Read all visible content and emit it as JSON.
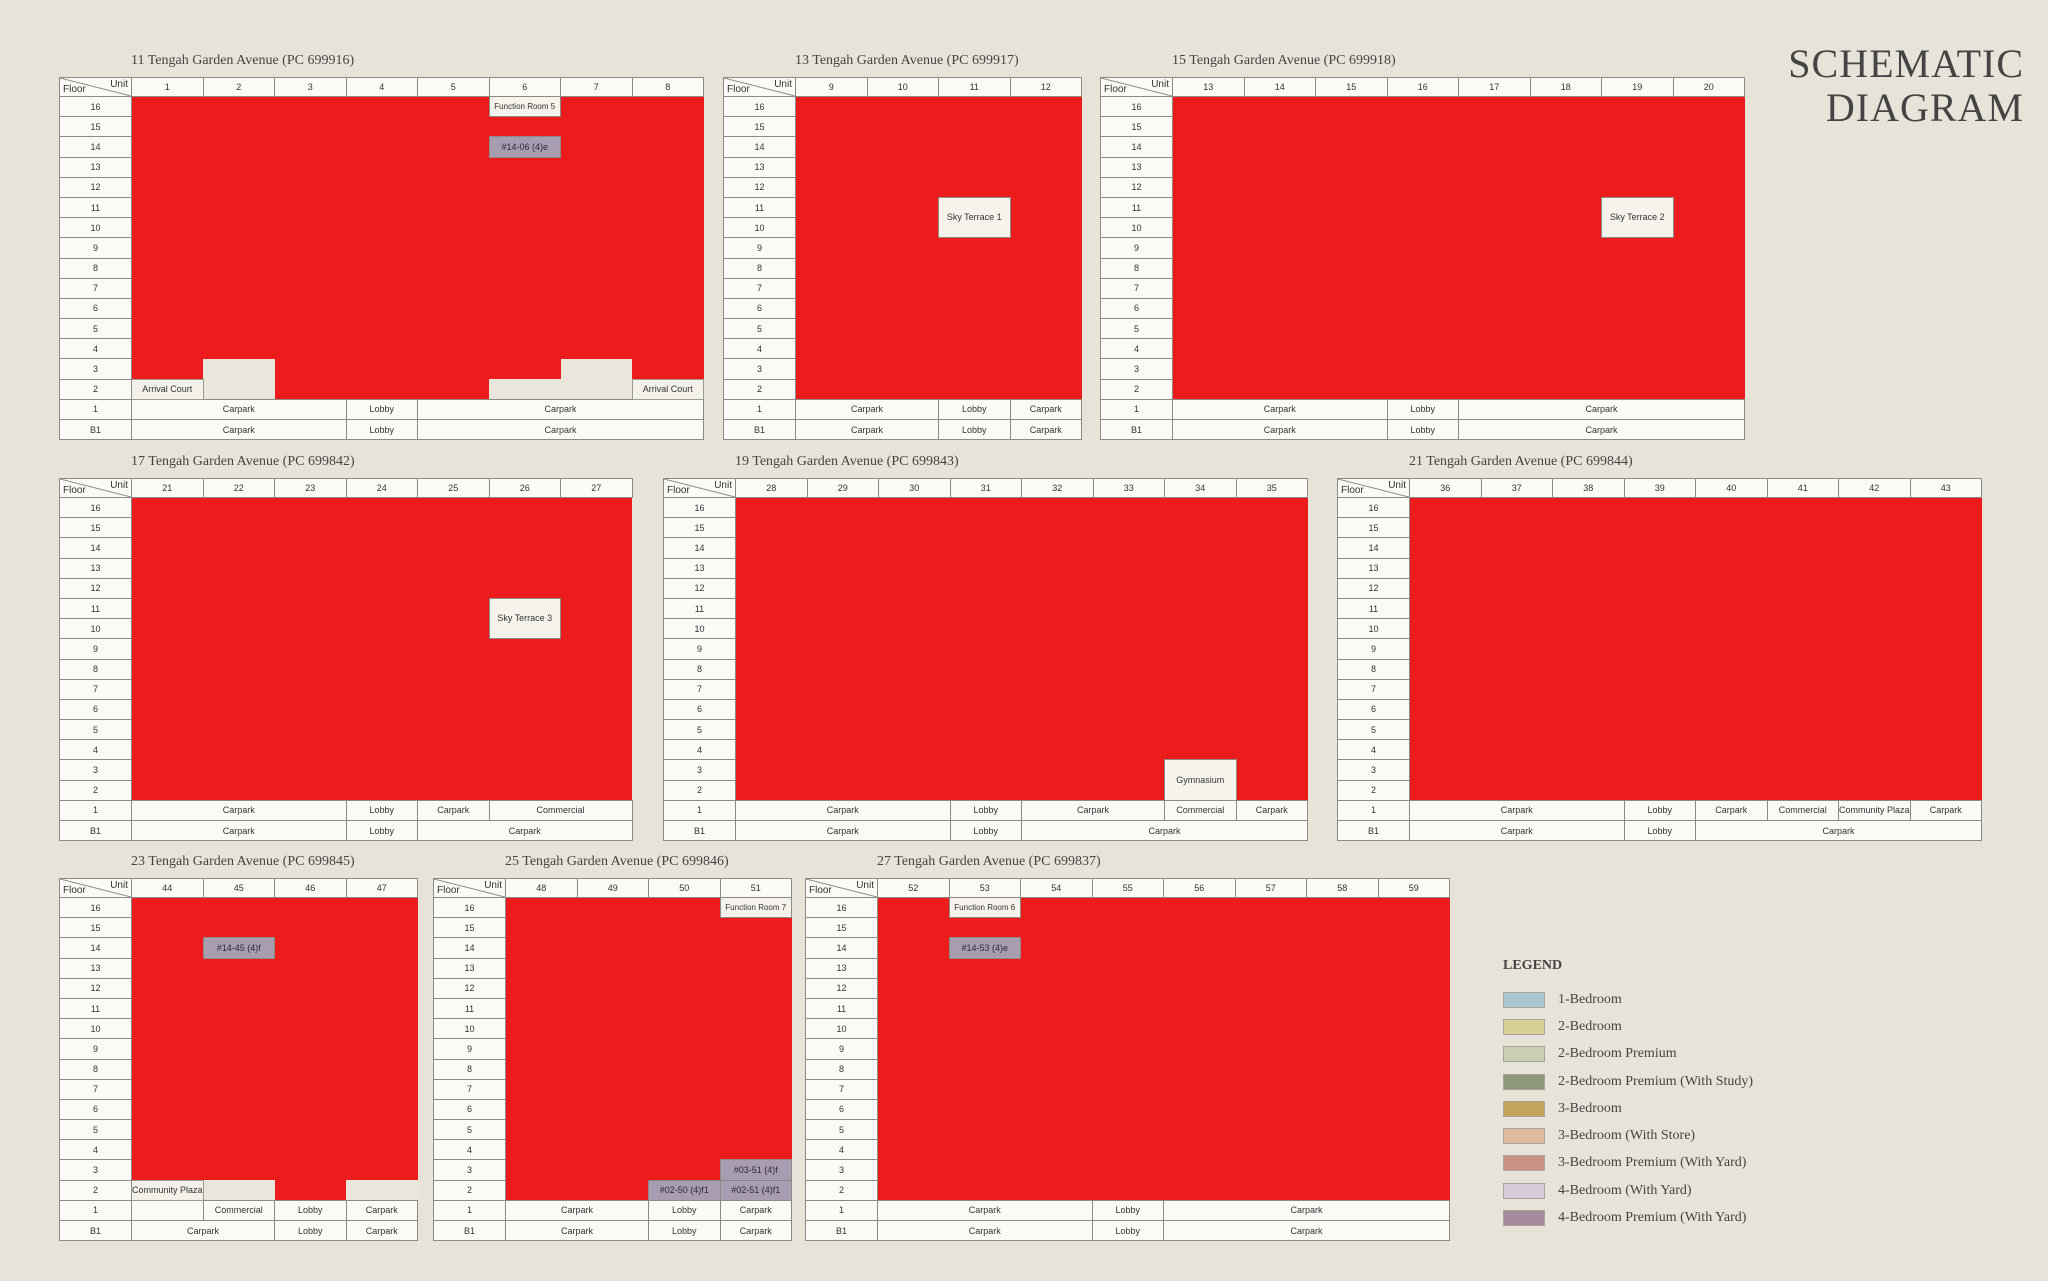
{
  "title": {
    "line1": "SCHEMATIC",
    "line2": "DIAGRAM"
  },
  "header_labels": {
    "unit": "Unit",
    "floor": "Floor"
  },
  "legend": {
    "heading": "LEGEND",
    "items": [
      {
        "label": "1-Bedroom",
        "color": "#a9c6d2"
      },
      {
        "label": "2-Bedroom",
        "color": "#d8d094"
      },
      {
        "label": "2-Bedroom Premium",
        "color": "#cbd0b4"
      },
      {
        "label": "2-Bedroom Premium (With Study)",
        "color": "#8c9878"
      },
      {
        "label": "3-Bedroom",
        "color": "#c4a45a"
      },
      {
        "label": "3-Bedroom (With Store)",
        "color": "#dfb89e"
      },
      {
        "label": "3-Bedroom Premium (With Yard)",
        "color": "#c99384"
      },
      {
        "label": "4-Bedroom (With Yard)",
        "color": "#d8ccd8"
      },
      {
        "label": "4-Bedroom Premium (With Yard)",
        "color": "#a68a9e"
      }
    ]
  },
  "colors": {
    "sold": "#ec1c1c",
    "highlight": "#a89cb0"
  },
  "blocks": [
    {
      "title": "11 Tengah Garden Avenue (PC 699916)",
      "units": [
        "1",
        "2",
        "3",
        "4",
        "5",
        "6",
        "7",
        "8"
      ],
      "floors": [
        "16",
        "15",
        "14",
        "13",
        "12",
        "11",
        "10",
        "9",
        "8",
        "7",
        "6",
        "5",
        "4",
        "3",
        "2"
      ],
      "special": {
        "16": {
          "6": "Function Room 5"
        },
        "14": {
          "6": "#14-06 (4)e"
        },
        "3": {
          "2": "",
          "7": ""
        },
        "2": {
          "1": "Arrival Court",
          "2": "",
          "6": "",
          "7": "",
          "8": "Arrival Court"
        }
      },
      "ground": [
        {
          "floor": "1",
          "cells": [
            {
              "text": "Carpark",
              "span": 3
            },
            {
              "text": "Lobby",
              "span": 1
            },
            {
              "text": "Carpark",
              "span": 4
            }
          ]
        },
        {
          "floor": "B1",
          "cells": [
            {
              "text": "Carpark",
              "span": 3
            },
            {
              "text": "Lobby",
              "span": 1
            },
            {
              "text": "Carpark",
              "span": 4
            }
          ]
        }
      ]
    },
    {
      "title": "13 Tengah Garden Avenue (PC 699917)",
      "units": [
        "9",
        "10",
        "11",
        "12"
      ],
      "floors": [
        "16",
        "15",
        "14",
        "13",
        "12",
        "11",
        "10",
        "9",
        "8",
        "7",
        "6",
        "5",
        "4",
        "3",
        "2"
      ],
      "special": {
        "11": {
          "11": "Sky Terrace 1",
          "rowspan": "11"
        }
      },
      "ground": [
        {
          "floor": "1",
          "cells": [
            {
              "text": "Carpark",
              "span": 2
            },
            {
              "text": "Lobby",
              "span": 1
            },
            {
              "text": "Carpark",
              "span": 1
            }
          ]
        },
        {
          "floor": "B1",
          "cells": [
            {
              "text": "Carpark",
              "span": 2
            },
            {
              "text": "Lobby",
              "span": 1
            },
            {
              "text": "Carpark",
              "span": 1
            }
          ]
        }
      ]
    },
    {
      "title": "15 Tengah Garden Avenue (PC 699918)",
      "units": [
        "13",
        "14",
        "15",
        "16",
        "17",
        "18",
        "19",
        "20"
      ],
      "floors": [
        "16",
        "15",
        "14",
        "13",
        "12",
        "11",
        "10",
        "9",
        "8",
        "7",
        "6",
        "5",
        "4",
        "3",
        "2"
      ],
      "special": {
        "11": {
          "19": "Sky Terrace 2",
          "rowspan": "19"
        }
      },
      "ground": [
        {
          "floor": "1",
          "cells": [
            {
              "text": "Carpark",
              "span": 3
            },
            {
              "text": "Lobby",
              "span": 1
            },
            {
              "text": "Carpark",
              "span": 4
            }
          ]
        },
        {
          "floor": "B1",
          "cells": [
            {
              "text": "Carpark",
              "span": 3
            },
            {
              "text": "Lobby",
              "span": 1
            },
            {
              "text": "Carpark",
              "span": 4
            }
          ]
        }
      ]
    },
    {
      "title": "17 Tengah Garden Avenue (PC 699842)",
      "units": [
        "21",
        "22",
        "23",
        "24",
        "25",
        "26",
        "27"
      ],
      "floors": [
        "16",
        "15",
        "14",
        "13",
        "12",
        "11",
        "10",
        "9",
        "8",
        "7",
        "6",
        "5",
        "4",
        "3",
        "2"
      ],
      "special": {
        "11": {
          "26": "Sky Terrace 3",
          "rowspan": "26"
        }
      },
      "ground": [
        {
          "floor": "1",
          "cells": [
            {
              "text": "Carpark",
              "span": 3
            },
            {
              "text": "Lobby",
              "span": 1
            },
            {
              "text": "Carpark",
              "span": 1
            },
            {
              "text": "Commercial",
              "span": 2
            }
          ]
        },
        {
          "floor": "B1",
          "cells": [
            {
              "text": "Carpark",
              "span": 3
            },
            {
              "text": "Lobby",
              "span": 1
            },
            {
              "text": "Carpark",
              "span": 3
            }
          ]
        }
      ]
    },
    {
      "title": "19 Tengah Garden Avenue (PC 699843)",
      "units": [
        "28",
        "29",
        "30",
        "31",
        "32",
        "33",
        "34",
        "35"
      ],
      "floors": [
        "16",
        "15",
        "14",
        "13",
        "12",
        "11",
        "10",
        "9",
        "8",
        "7",
        "6",
        "5",
        "4",
        "3",
        "2"
      ],
      "special": {
        "3": {
          "34": "Gymnasium",
          "rowspan": "34"
        }
      },
      "ground": [
        {
          "floor": "1",
          "cells": [
            {
              "text": "Carpark",
              "span": 3
            },
            {
              "text": "Lobby",
              "span": 1
            },
            {
              "text": "Carpark",
              "span": 2
            },
            {
              "text": "Commercial",
              "span": 1
            },
            {
              "text": "Carpark",
              "span": 1
            }
          ]
        },
        {
          "floor": "B1",
          "cells": [
            {
              "text": "Carpark",
              "span": 3
            },
            {
              "text": "Lobby",
              "span": 1
            },
            {
              "text": "Carpark",
              "span": 4
            }
          ]
        }
      ]
    },
    {
      "title": "21 Tengah Garden Avenue (PC 699844)",
      "units": [
        "36",
        "37",
        "38",
        "39",
        "40",
        "41",
        "42",
        "43"
      ],
      "floors": [
        "16",
        "15",
        "14",
        "13",
        "12",
        "11",
        "10",
        "9",
        "8",
        "7",
        "6",
        "5",
        "4",
        "3",
        "2"
      ],
      "special": {},
      "ground": [
        {
          "floor": "1",
          "cells": [
            {
              "text": "Carpark",
              "span": 3
            },
            {
              "text": "Lobby",
              "span": 1
            },
            {
              "text": "Carpark",
              "span": 1
            },
            {
              "text": "Commercial",
              "span": 1
            },
            {
              "text": "Community Plaza",
              "span": 1
            },
            {
              "text": "Carpark",
              "span": 1
            }
          ]
        },
        {
          "floor": "B1",
          "cells": [
            {
              "text": "Carpark",
              "span": 3
            },
            {
              "text": "Lobby",
              "span": 1
            },
            {
              "text": "Carpark",
              "span": 4
            }
          ]
        }
      ]
    },
    {
      "title": "23 Tengah Garden Avenue (PC 699845)",
      "units": [
        "44",
        "45",
        "46",
        "47"
      ],
      "floors": [
        "16",
        "15",
        "14",
        "13",
        "12",
        "11",
        "10",
        "9",
        "8",
        "7",
        "6",
        "5",
        "4",
        "3",
        "2"
      ],
      "special": {
        "14": {
          "45": "#14-45 (4)f"
        },
        "2": {
          "44": "Community Plaza",
          "45": "",
          "47": ""
        }
      },
      "ground": [
        {
          "floor": "1",
          "cells": [
            {
              "text": "",
              "span": 1
            },
            {
              "text": "Commercial",
              "span": 1
            },
            {
              "text": "Lobby",
              "span": 1
            },
            {
              "text": "Carpark",
              "span": 1
            }
          ]
        },
        {
          "floor": "B1",
          "cells": [
            {
              "text": "Carpark",
              "span": 2
            },
            {
              "text": "Lobby",
              "span": 1
            },
            {
              "text": "Carpark",
              "span": 1
            }
          ]
        }
      ]
    },
    {
      "title": "25 Tengah Garden Avenue (PC 699846)",
      "units": [
        "48",
        "49",
        "50",
        "51"
      ],
      "floors": [
        "16",
        "15",
        "14",
        "13",
        "12",
        "11",
        "10",
        "9",
        "8",
        "7",
        "6",
        "5",
        "4",
        "3",
        "2"
      ],
      "special": {
        "16": {
          "51": "Function Room 7"
        },
        "3": {
          "51": "#03-51 (4)f"
        },
        "2": {
          "50": "#02-50 (4)f1",
          "51": "#02-51 (4)f1"
        }
      },
      "ground": [
        {
          "floor": "1",
          "cells": [
            {
              "text": "Carpark",
              "span": 2
            },
            {
              "text": "Lobby",
              "span": 1
            },
            {
              "text": "Carpark",
              "span": 1
            }
          ]
        },
        {
          "floor": "B1",
          "cells": [
            {
              "text": "Carpark",
              "span": 2
            },
            {
              "text": "Lobby",
              "span": 1
            },
            {
              "text": "Carpark",
              "span": 1
            }
          ]
        }
      ]
    },
    {
      "title": "27 Tengah Garden Avenue (PC 699837)",
      "units": [
        "52",
        "53",
        "54",
        "55",
        "56",
        "57",
        "58",
        "59"
      ],
      "floors": [
        "16",
        "15",
        "14",
        "13",
        "12",
        "11",
        "10",
        "9",
        "8",
        "7",
        "6",
        "5",
        "4",
        "3",
        "2"
      ],
      "special": {
        "16": {
          "53": "Function Room 6"
        },
        "14": {
          "53": "#14-53 (4)e"
        }
      },
      "ground": [
        {
          "floor": "1",
          "cells": [
            {
              "text": "Carpark",
              "span": 3
            },
            {
              "text": "Lobby",
              "span": 1
            },
            {
              "text": "Carpark",
              "span": 4
            }
          ]
        },
        {
          "floor": "B1",
          "cells": [
            {
              "text": "Carpark",
              "span": 3
            },
            {
              "text": "Lobby",
              "span": 1
            },
            {
              "text": "Carpark",
              "span": 4
            }
          ]
        }
      ]
    }
  ]
}
